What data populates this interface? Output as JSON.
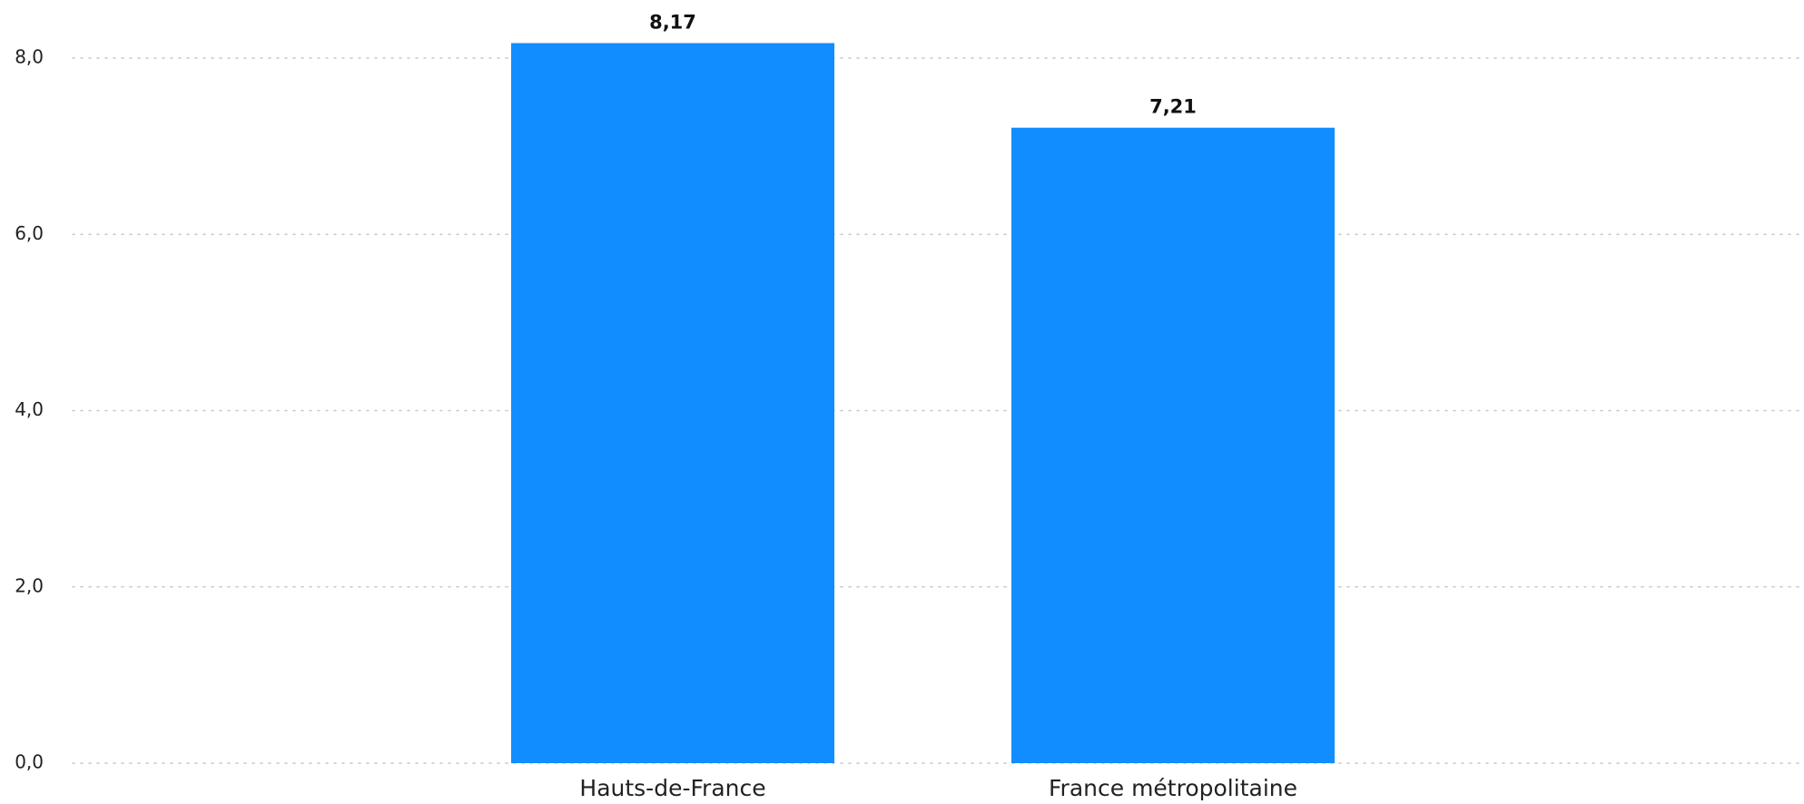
{
  "chart_data": {
    "type": "bar",
    "categories": [
      "Hauts-de-France",
      "France métropolitaine"
    ],
    "values": [
      8.17,
      7.21
    ],
    "value_labels": [
      "8,17",
      "7,21"
    ],
    "title": "",
    "xlabel": "",
    "ylabel": "",
    "ylim": [
      0,
      8.2
    ],
    "yticks": [
      0,
      2,
      4,
      6,
      8
    ],
    "ytick_labels": [
      "0,0",
      "2,0",
      "4,0",
      "6,0",
      "8,0"
    ],
    "grid": true,
    "legend": "none",
    "colors": {
      "bar": "#118DFF",
      "grid": "#C8C8C8",
      "text": "#222222"
    }
  }
}
